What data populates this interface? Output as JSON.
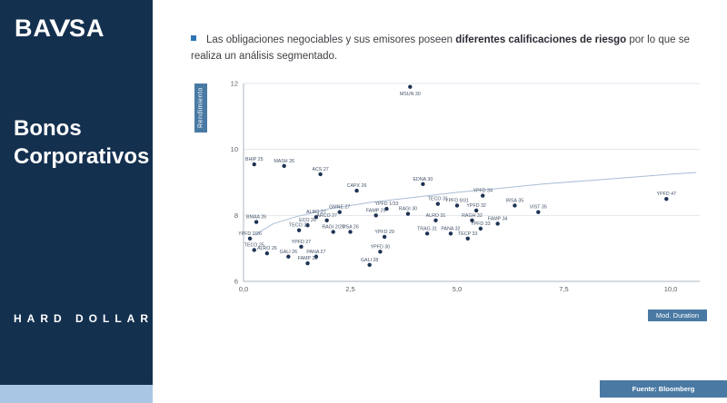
{
  "colors": {
    "navy": "#14304f",
    "strip": "#a9c7e4",
    "box": "#4a7aa4",
    "accent": "#2e74b5",
    "point": "#1d3354",
    "trend": "#a9bdd6"
  },
  "sidebar": {
    "logo_part1": "BA",
    "logo_v": "V",
    "logo_part2": "SA",
    "title_line1": "Bonos",
    "title_line2": "Corporativos",
    "footer": "HARD DOLLAR"
  },
  "header": {
    "bullet_part1": "Las obligaciones negociables y sus emisores poseen ",
    "bullet_bold": "diferentes calificaciones de riesgo",
    "bullet_part2": " por lo que se realiza un análisis segmentado."
  },
  "source_label": "Fuente: Bloomberg",
  "chart_data": {
    "type": "scatter",
    "title": "",
    "xlabel": "Mod. Duration",
    "ylabel": "Rendimiento",
    "xlim": [
      0,
      10.7
    ],
    "ylim": [
      6,
      12
    ],
    "grid": true,
    "x_ticks": [
      {
        "value": 0,
        "label": "0,0"
      },
      {
        "value": 2.5,
        "label": "2,5"
      },
      {
        "value": 5,
        "label": "5,0"
      },
      {
        "value": 7.5,
        "label": "7,5"
      },
      {
        "value": 10,
        "label": "10,0"
      }
    ],
    "y_ticks": [
      {
        "value": 6,
        "label": "6"
      },
      {
        "value": 8,
        "label": "8"
      },
      {
        "value": 10,
        "label": "10"
      },
      {
        "value": 12,
        "label": "12"
      }
    ],
    "points": [
      {
        "label": "MSUN 30",
        "x": 3.9,
        "y": 11.9,
        "label_pos": "below"
      },
      {
        "label": "BHIP 25",
        "x": 0.25,
        "y": 9.55
      },
      {
        "label": "MASH 26",
        "x": 0.95,
        "y": 9.5
      },
      {
        "label": "ACS 27",
        "x": 1.8,
        "y": 9.25
      },
      {
        "label": "CAPX 26",
        "x": 2.65,
        "y": 8.75
      },
      {
        "label": "EDNA 30",
        "x": 4.2,
        "y": 8.95
      },
      {
        "label": "YPFD 34",
        "x": 5.6,
        "y": 8.6
      },
      {
        "label": "YPFD 47",
        "x": 9.9,
        "y": 8.5
      },
      {
        "label": "TECO 31",
        "x": 4.55,
        "y": 8.35
      },
      {
        "label": "YPFD 9/31",
        "x": 5.0,
        "y": 8.3
      },
      {
        "label": "IRSA 35",
        "x": 6.35,
        "y": 8.3
      },
      {
        "label": "YPFD 32",
        "x": 5.45,
        "y": 8.15
      },
      {
        "label": "VIST 35",
        "x": 6.9,
        "y": 8.1
      },
      {
        "label": "GMNE 27",
        "x": 2.25,
        "y": 8.1
      },
      {
        "label": "YPFD 1/33",
        "x": 3.35,
        "y": 8.2
      },
      {
        "label": "FAMP 29",
        "x": 3.1,
        "y": 8.0
      },
      {
        "label": "RAGI 30",
        "x": 3.85,
        "y": 8.05
      },
      {
        "label": "ALRO 27",
        "x": 1.7,
        "y": 7.95
      },
      {
        "label": "ARCO 27",
        "x": 1.95,
        "y": 7.85
      },
      {
        "label": "BMAA 26",
        "x": 0.3,
        "y": 7.8
      },
      {
        "label": "ECO 26",
        "x": 1.5,
        "y": 7.7
      },
      {
        "label": "TECO 26",
        "x": 1.3,
        "y": 7.55
      },
      {
        "label": "RAGI 2/27",
        "x": 2.1,
        "y": 7.5
      },
      {
        "label": "MSA 26",
        "x": 2.5,
        "y": 7.5
      },
      {
        "label": "ALRO 31",
        "x": 4.5,
        "y": 7.85
      },
      {
        "label": "RAGH 32",
        "x": 5.35,
        "y": 7.85
      },
      {
        "label": "FAMP 34",
        "x": 5.95,
        "y": 7.75
      },
      {
        "label": "YPFD 33",
        "x": 5.55,
        "y": 7.6
      },
      {
        "label": "PANA 32",
        "x": 4.85,
        "y": 7.45
      },
      {
        "label": "TECP 33",
        "x": 5.25,
        "y": 7.3
      },
      {
        "label": "TRAG 31",
        "x": 4.3,
        "y": 7.45
      },
      {
        "label": "YPFD 29",
        "x": 3.3,
        "y": 7.35
      },
      {
        "label": "YPFD 2/26",
        "x": 0.15,
        "y": 7.3
      },
      {
        "label": "TECO 25",
        "x": 0.25,
        "y": 6.95
      },
      {
        "label": "ALRO 26",
        "x": 0.55,
        "y": 6.85
      },
      {
        "label": "YPFD 27",
        "x": 1.35,
        "y": 7.05
      },
      {
        "label": "GALI 26",
        "x": 1.05,
        "y": 6.75
      },
      {
        "label": "PANA 27",
        "x": 1.7,
        "y": 6.75
      },
      {
        "label": "FAMP 28",
        "x": 1.5,
        "y": 6.55
      },
      {
        "label": "YPFD 30",
        "x": 3.2,
        "y": 6.9
      },
      {
        "label": "GALI 28",
        "x": 2.95,
        "y": 6.5
      }
    ],
    "trend": [
      [
        0.25,
        7.4
      ],
      [
        0.7,
        7.75
      ],
      [
        1.2,
        7.95
      ],
      [
        2,
        8.2
      ],
      [
        3,
        8.4
      ],
      [
        4,
        8.55
      ],
      [
        5,
        8.7
      ],
      [
        6,
        8.82
      ],
      [
        7,
        8.95
      ],
      [
        8,
        9.05
      ],
      [
        9,
        9.15
      ],
      [
        10,
        9.25
      ],
      [
        10.6,
        9.3
      ]
    ]
  }
}
